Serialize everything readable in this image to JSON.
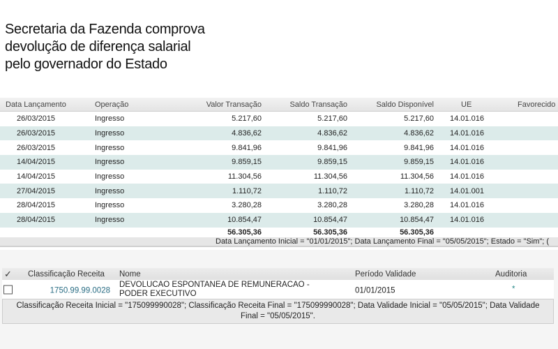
{
  "headline": [
    "Secretaria da Fazenda comprova",
    "devolução de diferença salarial",
    "pelo governador do Estado"
  ],
  "transactions": {
    "columns": [
      "Data Lançamento",
      "Operação",
      "Valor Transação",
      "Saldo Transação",
      "Saldo Disponível",
      "UE",
      "Favorecido"
    ],
    "rows": [
      [
        "26/03/2015",
        "Ingresso",
        "5.217,60",
        "5.217,60",
        "5.217,60",
        "14.01.016"
      ],
      [
        "26/03/2015",
        "Ingresso",
        "4.836,62",
        "4.836,62",
        "4.836,62",
        "14.01.016"
      ],
      [
        "26/03/2015",
        "Ingresso",
        "9.841,96",
        "9.841,96",
        "9.841,96",
        "14.01.016"
      ],
      [
        "14/04/2015",
        "Ingresso",
        "9.859,15",
        "9.859,15",
        "9.859,15",
        "14.01.016"
      ],
      [
        "14/04/2015",
        "Ingresso",
        "11.304,56",
        "11.304,56",
        "11.304,56",
        "14.01.016"
      ],
      [
        "27/04/2015",
        "Ingresso",
        "1.110,72",
        "1.110,72",
        "1.110,72",
        "14.01.001"
      ],
      [
        "28/04/2015",
        "Ingresso",
        "3.280,28",
        "3.280,28",
        "3.280,28",
        "14.01.016"
      ],
      [
        "28/04/2015",
        "Ingresso",
        "10.854,47",
        "10.854,47",
        "10.854,47",
        "14.01.016"
      ]
    ],
    "totals": [
      "56.305,36",
      "56.305,36",
      "56.305,36"
    ],
    "filter": "Data Lançamento Inicial = \"01/01/2015\"; Data Lançamento Final = \"05/05/2015\"; Estado = \"Sim\"; ("
  },
  "revenue": {
    "select_all_icon": "checkmark-icon",
    "columns": [
      "Classificação Receita",
      "Nome",
      "Período Validade",
      "Auditoria"
    ],
    "row": {
      "code": "1750.99.99.0028",
      "name_line1": "DEVOLUCAO ESPONTANEA DE REMUNERACAO -",
      "name_line2": "PODER EXECUTIVO",
      "period": "01/01/2015",
      "audit": "*"
    },
    "filter": "Classificação Receita Inicial = \"175099990028\"; Classificação Receita Final = \"175099990028\"; Data Validade Inicial = \"05/05/2015\"; Data Validade Final = \"05/05/2015\"."
  },
  "colors": {
    "row_alt": "#dcebea",
    "link": "#2a6d84"
  }
}
